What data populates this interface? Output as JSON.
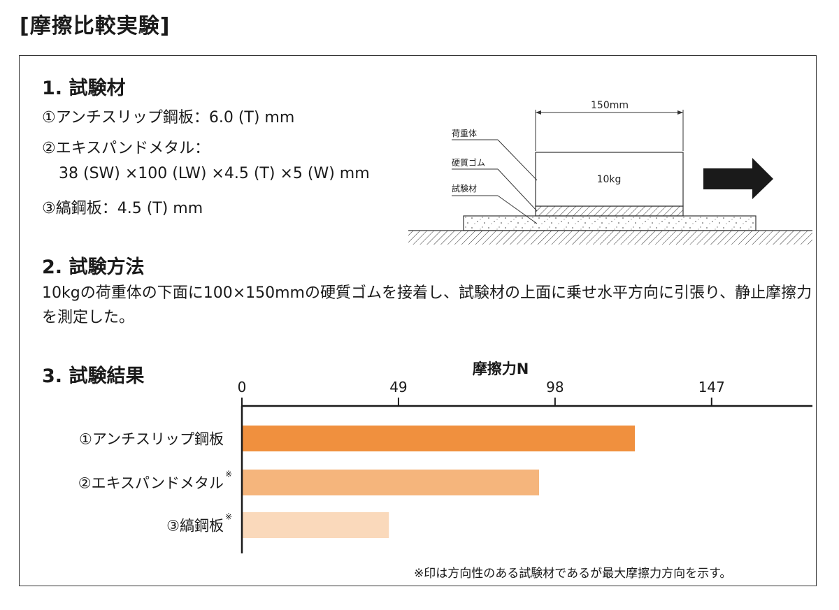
{
  "page_title": "[摩擦比較実験]",
  "sections": {
    "materials": {
      "heading": "1. 試験材",
      "lines": [
        "①アンチスリップ鋼板：6.0 (T) mm",
        "②エキスパンドメタル：",
        "38 (SW) ×100 (LW) ×4.5 (T) ×5 (W) mm",
        "③縞鋼板：4.5 (T) mm"
      ]
    },
    "method": {
      "heading": "2. 試験方法",
      "text": "10kgの荷重体の下面に100×150mmの硬質ゴムを接着し、試験材の上面に乗せ水平方向に引張り、静止摩擦力を測定した。"
    },
    "results": {
      "heading": "3. 試験結果"
    }
  },
  "diagram": {
    "width_label": "150mm",
    "load_label": "荷重体",
    "rubber_label": "硬質ゴム",
    "material_label": "試験材",
    "weight_label": "10kg"
  },
  "chart_data": {
    "type": "bar",
    "orientation": "horizontal",
    "title": "摩擦力N",
    "xlim": [
      0,
      178
    ],
    "ticks": [
      0,
      49,
      98,
      147
    ],
    "tick_labels": [
      "0",
      "49",
      "98",
      "147"
    ],
    "categories": [
      "①アンチスリップ鋼板",
      "②エキスパンドメタル",
      "③縞鋼板"
    ],
    "category_marks": [
      "",
      "※",
      "※"
    ],
    "values": [
      123,
      93,
      46
    ],
    "colors": [
      "#f0903e",
      "#f5b57c",
      "#fad9bb"
    ]
  },
  "footnote": "※印は方向性のある試験材であるが最大摩擦力方向を示す。"
}
